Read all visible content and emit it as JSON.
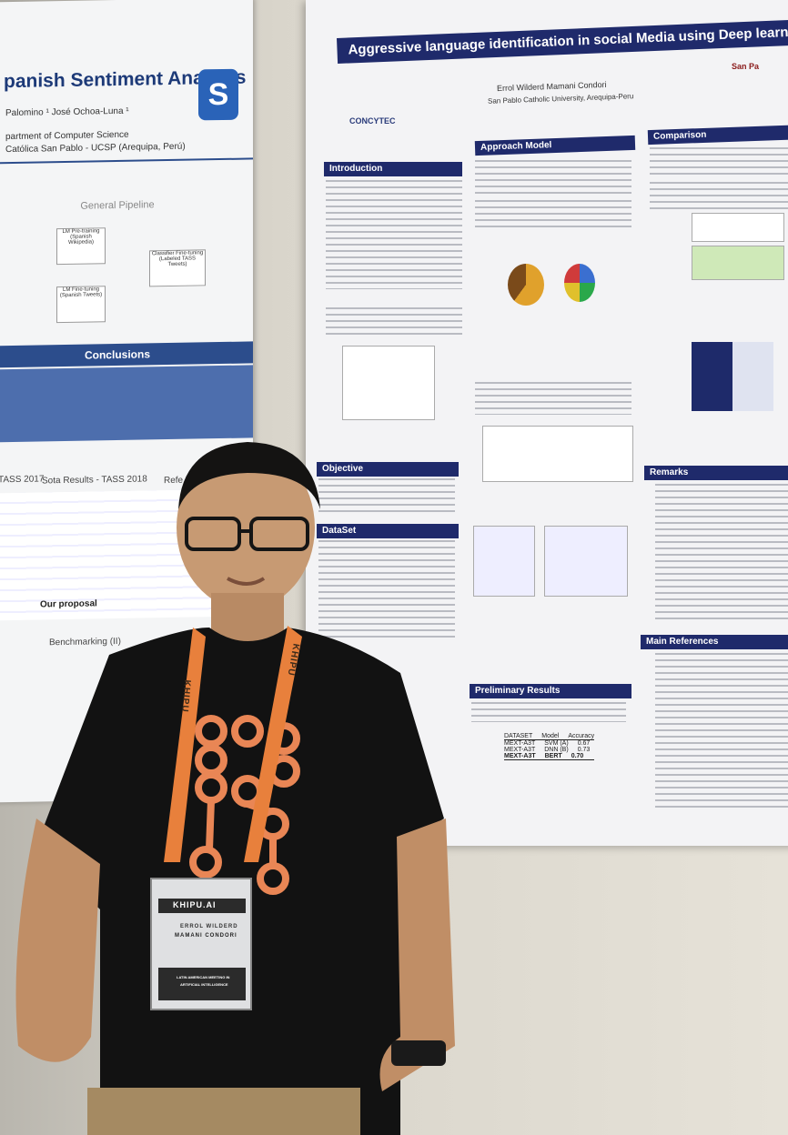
{
  "left_poster": {
    "title": "panish Sentiment Analysis",
    "authors_line1": "Palomino ¹    José Ochoa-Luna ¹",
    "authors_line2": "partment of Computer Science",
    "authors_line3": "Católica San Pablo - UCSP (Arequipa, Perú)",
    "logo": "S",
    "pipeline_label": "General Pipeline",
    "box1": "LM Pre-training (Spanish Wikipedia)",
    "box2": "LM Fine-tuning (Spanish Tweets)",
    "box3": "Classifier Fine-tuning (Labeled TASS Tweets)",
    "conclusions_label": "Conclusions",
    "tass2017": "TASS 2017",
    "sota": "Sota Results - TASS 2018",
    "refs": "Refe",
    "our_proposal": "Our proposal",
    "benchmarking": "Benchmarking (II)"
  },
  "poster": {
    "title": "Aggressive language identification in social Media using Deep learni",
    "author": "Errol Wilderd Mamani Condori",
    "affiliation": "San Pablo Catholic University, Arequipa-Peru",
    "logo_right": "San Pa",
    "logo_left": "CONCYTEC",
    "sections": {
      "introduction": "Introduction",
      "approach": "Approach Model",
      "comparison": "Comparison",
      "objective": "Objective",
      "dataset": "DataSet",
      "remarks": "Remarks",
      "references": "Main References",
      "preliminary": "Preliminary Results"
    },
    "results_table": {
      "headers": [
        "DATASET",
        "Model",
        "Accuracy"
      ],
      "rows": [
        [
          "MEXT-A3T",
          "SVM (A)",
          "0.67"
        ],
        [
          "MEXT-A3T",
          "DNN (B)",
          "0.73"
        ],
        [
          "MEXT-A3T",
          "BERT",
          "0.70"
        ]
      ]
    }
  },
  "badge": {
    "brand": "KHIPU.AI",
    "name_line1": "ERROL WILDERD",
    "name_line2": "MAMANI CONDORI",
    "footer1": "LATIN AMERICAN MEETING IN",
    "footer2": "ARTIFICIAL INTELLIGENCE",
    "lanyard": "KHIPU"
  }
}
